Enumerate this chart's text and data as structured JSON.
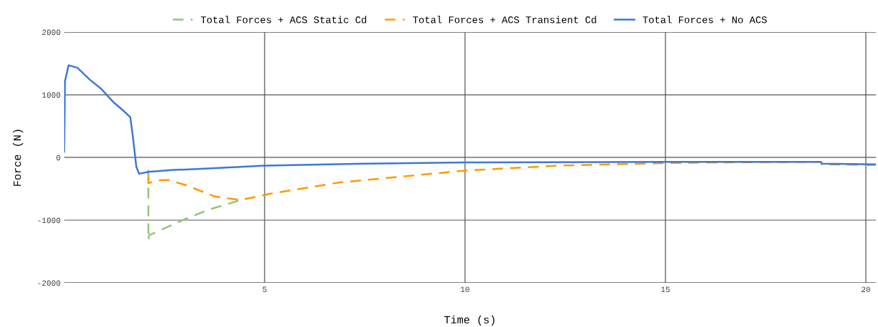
{
  "chart_data": {
    "type": "line",
    "xlabel": "Time (s)",
    "ylabel": "Force (N)",
    "xlim": [
      0,
      20.25
    ],
    "xticks": [
      5,
      10,
      15,
      20
    ],
    "ylim": [
      -2000,
      2000
    ],
    "yticks": [
      -2000,
      -1000,
      0,
      1000,
      2000
    ],
    "grid": true,
    "legend": "top",
    "series": [
      {
        "name": "Total Forces + ACS Static Cd",
        "color": "#93c47d",
        "line_style": "dashed",
        "x": [
          2.1,
          2.1,
          2.12,
          3.03,
          3.62,
          4.4
        ],
        "values": [
          -200,
          -1320,
          -1240,
          -980,
          -830,
          -680
        ]
      },
      {
        "name": "Total Forces + ACS Transient Cd",
        "color": "#ff9900",
        "line_style": "dashed",
        "x": [
          2.1,
          2.1,
          2.42,
          2.6,
          3.03,
          3.74,
          4.4,
          5.0,
          5.13,
          6.85,
          10,
          12.33,
          14.97,
          16,
          18.88,
          18.9,
          20.25
        ],
        "values": [
          -300,
          -410,
          -360,
          -360,
          -440,
          -620,
          -680,
          -600,
          -580,
          -400,
          -210,
          -130,
          -90,
          -80,
          -70,
          -110,
          -120
        ]
      },
      {
        "name": "Total Forces + No ACS",
        "color": "#3c78d8",
        "line_style": "solid",
        "x": [
          0,
          0.02,
          0.11,
          0.33,
          0.64,
          0.93,
          1.23,
          1.47,
          1.65,
          1.71,
          1.8,
          1.87,
          2.1,
          2.72,
          3.5,
          5.0,
          7.5,
          10,
          15,
          18.88,
          18.9,
          20.25
        ],
        "values": [
          90,
          1220,
          1470,
          1430,
          1240,
          1090,
          880,
          750,
          640,
          350,
          -150,
          -260,
          -230,
          -200,
          -180,
          -130,
          -100,
          -80,
          -70,
          -70,
          -100,
          -110
        ]
      }
    ]
  }
}
